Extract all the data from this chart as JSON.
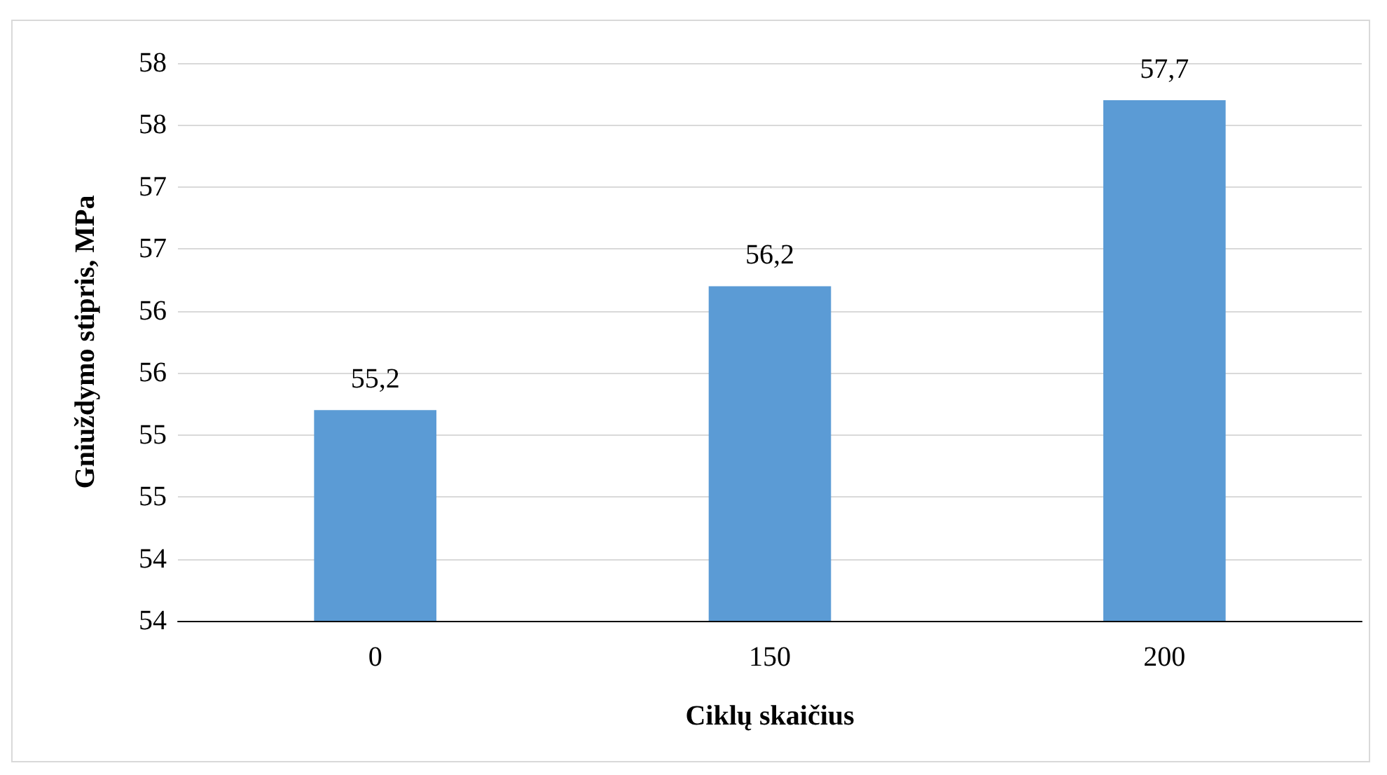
{
  "chart_data": {
    "type": "bar",
    "xlabel": "Ciklų skaičius",
    "ylabel": "Gniuždymo stipris, MPa",
    "categories": [
      "0",
      "150",
      "200"
    ],
    "series": [
      {
        "color": "#5b9bd5",
        "values": [
          55.2,
          56.2,
          57.7
        ],
        "value_labels": [
          "55,2",
          "56,2",
          "57,7"
        ]
      }
    ],
    "ylim": [
      53.5,
      58
    ],
    "yticks": [
      {
        "value": 53.5,
        "label": "54"
      },
      {
        "value": 54,
        "label": "54"
      },
      {
        "value": 54.5,
        "label": "55"
      },
      {
        "value": 55,
        "label": "55"
      },
      {
        "value": 55.5,
        "label": "56"
      },
      {
        "value": 56,
        "label": "56"
      },
      {
        "value": 56.5,
        "label": "57"
      },
      {
        "value": 57,
        "label": "57"
      },
      {
        "value": 57.5,
        "label": "58"
      },
      {
        "value": 58,
        "label": "58"
      }
    ],
    "grid": "y"
  }
}
